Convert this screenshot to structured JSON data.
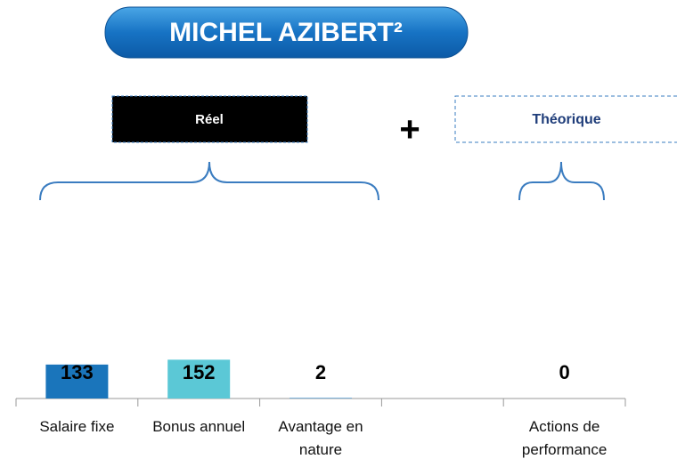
{
  "title": "MICHEL AZIBERT²",
  "groups": {
    "real": "Réel",
    "plus": "+",
    "theoretical": "Théorique"
  },
  "chart_data": {
    "type": "bar",
    "categories": [
      "Salaire fixe",
      "Bonus annuel",
      "Avantage en nature",
      null,
      "Actions de performance"
    ],
    "values": [
      133,
      152,
      2,
      null,
      0
    ],
    "colors": [
      "#1a75bb",
      "#5bc8d6",
      "#1a75bb",
      "#1a75bb",
      "#1a75bb"
    ]
  }
}
